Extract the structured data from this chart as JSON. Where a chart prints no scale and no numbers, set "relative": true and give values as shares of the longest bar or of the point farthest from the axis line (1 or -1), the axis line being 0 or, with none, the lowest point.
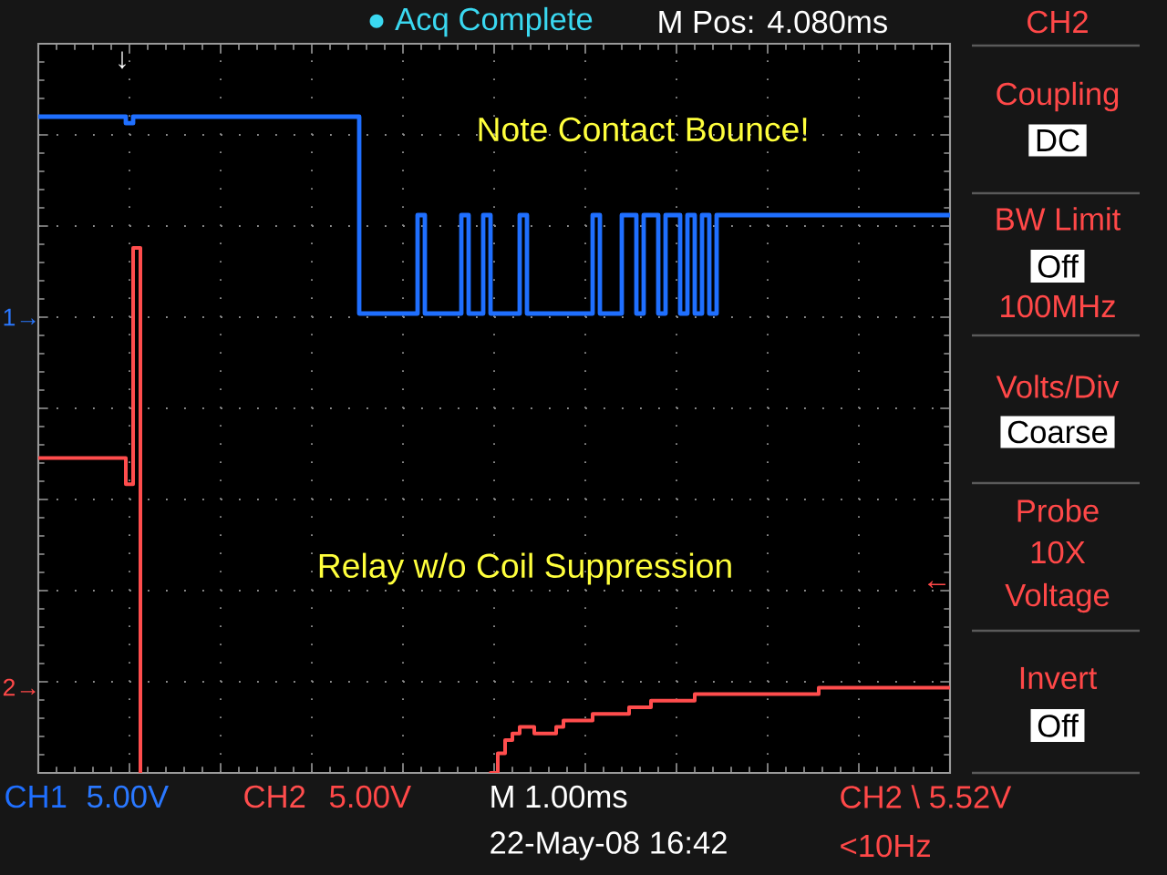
{
  "chart_data": {
    "type": "step",
    "relative": true,
    "grid": true,
    "categories": [
      null,
      null,
      null,
      null,
      null,
      null,
      null,
      null,
      null,
      null,
      null,
      null,
      null,
      null,
      null,
      null,
      null,
      null,
      null,
      null,
      null,
      null,
      null,
      null,
      null,
      null,
      null,
      null,
      null,
      null,
      null,
      null,
      null,
      null,
      null,
      null,
      null,
      null,
      null,
      null,
      null,
      null,
      null,
      null,
      null,
      null,
      null,
      null,
      null,
      null,
      null,
      null,
      null,
      null,
      null,
      null,
      null,
      null,
      null,
      null,
      null,
      null,
      null,
      null,
      null,
      null,
      null,
      null,
      null,
      null,
      null,
      null,
      null,
      null,
      null,
      null,
      null,
      null,
      null,
      null,
      null,
      null,
      null,
      null,
      null,
      null,
      null,
      null,
      null,
      null,
      null,
      null,
      null,
      null,
      null,
      null,
      null,
      null,
      null,
      null,
      null,
      null,
      null,
      null,
      null,
      null,
      null,
      null,
      null,
      null,
      null,
      null,
      null,
      null,
      null,
      null,
      null,
      null,
      null,
      null,
      null,
      null,
      null,
      null,
      null,
      null
    ],
    "series": [
      {
        "name": "CH1",
        "color": "#1f6fff",
        "values": [
          1,
          1,
          1,
          1,
          1,
          1,
          1,
          1,
          1,
          1,
          1,
          1,
          0.99,
          1,
          1,
          1,
          1,
          1,
          1,
          1,
          1,
          1,
          1,
          1,
          1,
          1,
          1,
          1,
          1,
          1,
          1,
          1,
          1,
          1,
          1,
          1,
          1,
          1,
          1,
          1,
          1,
          1,
          1,
          1,
          0.7,
          0.7,
          0.7,
          0.7,
          0.7,
          0.7,
          0.7,
          0.7,
          0.85,
          0.7,
          0.7,
          0.7,
          0.7,
          0.7,
          0.85,
          0.7,
          0.7,
          0.85,
          0.7,
          0.7,
          0.7,
          0.7,
          0.85,
          0.7,
          0.7,
          0.7,
          0.7,
          0.7,
          0.7,
          0.7,
          0.7,
          0.7,
          0.85,
          0.7,
          0.7,
          0.7,
          0.85,
          0.85,
          0.7,
          0.85,
          0.85,
          0.7,
          0.85,
          0.85,
          0.7,
          0.85,
          0.7,
          0.85,
          0.7,
          0.85,
          0.85,
          0.85,
          0.85,
          0.85,
          0.85,
          0.85,
          0.85,
          0.85,
          0.85,
          0.85,
          0.85,
          0.85,
          0.85,
          0.85,
          0.85,
          0.85,
          0.85,
          0.85,
          0.85,
          0.85,
          0.85,
          0.85,
          0.85,
          0.85,
          0.85,
          0.85,
          0.85,
          0.85,
          0.85,
          0.85,
          0.85,
          0.85
        ]
      },
      {
        "name": "CH2",
        "color": "#ff4d4d",
        "values": [
          0.48,
          0.48,
          0.48,
          0.48,
          0.48,
          0.48,
          0.48,
          0.48,
          0.48,
          0.48,
          0.48,
          0.48,
          0.44,
          0.8,
          0,
          null,
          null,
          null,
          null,
          null,
          null,
          null,
          null,
          null,
          null,
          null,
          null,
          null,
          null,
          null,
          null,
          null,
          null,
          null,
          null,
          null,
          null,
          null,
          null,
          null,
          null,
          null,
          null,
          null,
          null,
          null,
          null,
          null,
          null,
          null,
          null,
          null,
          null,
          null,
          null,
          null,
          null,
          null,
          null,
          null,
          null,
          null,
          0,
          0.03,
          0.05,
          0.06,
          0.07,
          0.07,
          0.06,
          0.06,
          0.06,
          0.07,
          0.08,
          0.08,
          0.08,
          0.08,
          0.09,
          0.09,
          0.09,
          0.09,
          0.09,
          0.1,
          0.1,
          0.1,
          0.11,
          0.11,
          0.11,
          0.11,
          0.11,
          0.11,
          0.12,
          0.12,
          0.12,
          0.12,
          0.12,
          0.12,
          0.12,
          0.12,
          0.12,
          0.12,
          0.12,
          0.12,
          0.12,
          0.12,
          0.12,
          0.12,
          0.12,
          0.13,
          0.13,
          0.13,
          0.13,
          0.13,
          0.13,
          0.13,
          0.13,
          0.13,
          0.13,
          0.13,
          0.13,
          0.13,
          0.13,
          0.13,
          0.13,
          0.13,
          0.13,
          0.13
        ]
      }
    ],
    "annotations": [
      "● Acq Complete",
      "M Pos: 4.080ms",
      "CH2",
      "↓",
      "Coupling",
      "Note Contact Bounce!",
      "DC",
      "BW Limit",
      "Off",
      "100MHz",
      "1→",
      "Volts/Div",
      "Coarse",
      "Probe",
      "10X",
      "Relay w/o Coil Suppression",
      "←",
      "Voltage",
      "Invert",
      "2→",
      "Off",
      "5.00V",
      "5.00V",
      "M 1.00ms",
      "CH2 \\ 5.52V",
      "22-May-08 16:42",
      "<10Hz"
    ]
  }
}
